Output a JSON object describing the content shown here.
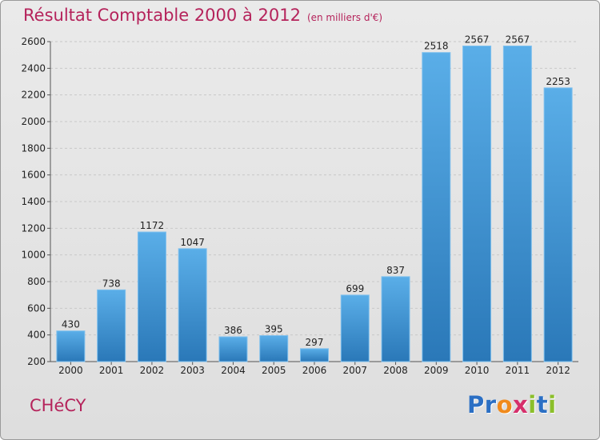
{
  "chart_data": {
    "type": "bar",
    "title": "Résultat Comptable 2000 à 2012",
    "subtitle": "(en milliers d'€)",
    "categories": [
      "2000",
      "2001",
      "2002",
      "2003",
      "2004",
      "2005",
      "2006",
      "2007",
      "2008",
      "2009",
      "2010",
      "2011",
      "2012"
    ],
    "values": [
      430,
      738,
      1172,
      1047,
      386,
      395,
      297,
      699,
      837,
      2518,
      2567,
      2567,
      2253
    ],
    "ylim": [
      200,
      2600
    ],
    "yticks": [
      200,
      400,
      600,
      800,
      1000,
      1200,
      1400,
      1600,
      1800,
      2000,
      2200,
      2400,
      2600
    ],
    "grid": true,
    "bar_color": "#3c95d6",
    "xlabel": "",
    "ylabel": ""
  },
  "footer": {
    "city": "CHéCY",
    "logo_letters": [
      {
        "char": "P",
        "color": "#2b6fc4"
      },
      {
        "char": "r",
        "color": "#2b6fc4"
      },
      {
        "char": "o",
        "color": "#f08a1c"
      },
      {
        "char": "x",
        "color": "#d62f6b"
      },
      {
        "char": "i",
        "color": "#8bbf2a"
      },
      {
        "char": "t",
        "color": "#2b6fc4"
      },
      {
        "char": "i",
        "color": "#8bbf2a"
      }
    ]
  }
}
